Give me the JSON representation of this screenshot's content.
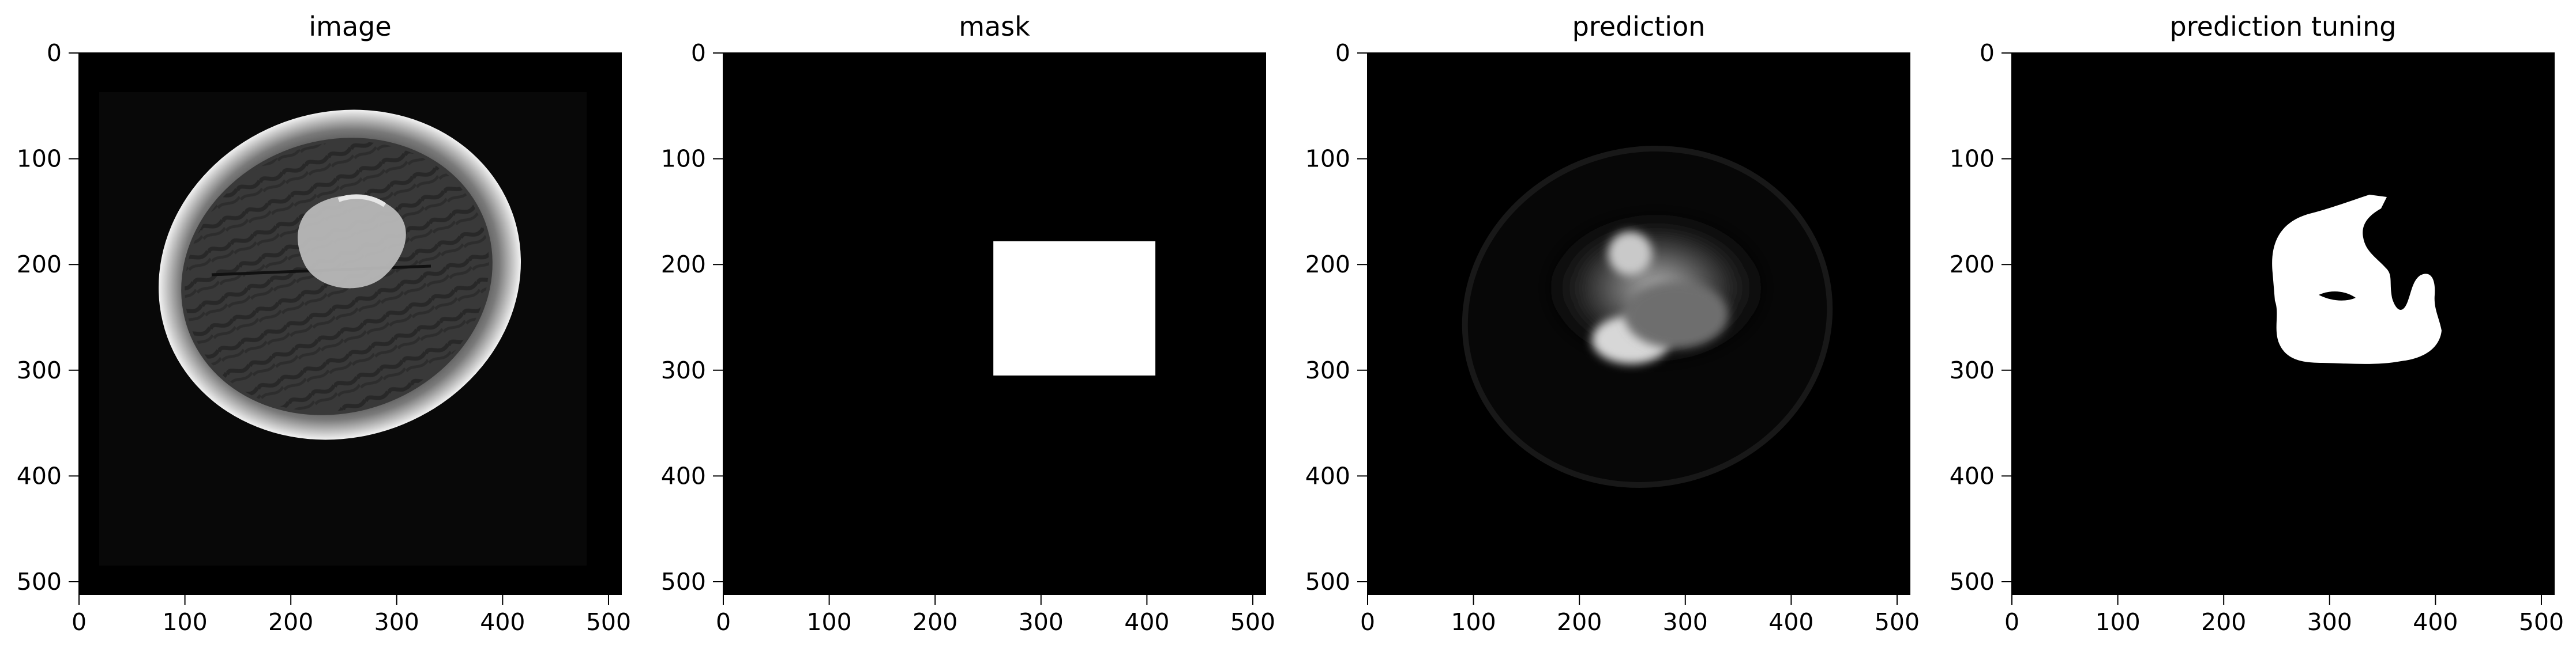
{
  "figure": {
    "panels": [
      {
        "title": "image",
        "content": "brain-mri",
        "x_ticks": [
          "0",
          "100",
          "200",
          "300",
          "400",
          "500"
        ],
        "y_ticks": [
          "0",
          "100",
          "200",
          "300",
          "400",
          "500"
        ]
      },
      {
        "title": "mask",
        "content": "rectangle-mask",
        "x_ticks": [
          "0",
          "100",
          "200",
          "300",
          "400",
          "500"
        ],
        "y_ticks": [
          "0",
          "100",
          "200",
          "300",
          "400",
          "500"
        ]
      },
      {
        "title": "prediction",
        "content": "prediction-heatmap",
        "x_ticks": [
          "0",
          "100",
          "200",
          "300",
          "400",
          "500"
        ],
        "y_ticks": [
          "0",
          "100",
          "200",
          "300",
          "400",
          "500"
        ]
      },
      {
        "title": "prediction tuning",
        "content": "binary-segmentation",
        "x_ticks": [
          "0",
          "100",
          "200",
          "300",
          "400",
          "500"
        ],
        "y_ticks": [
          "0",
          "100",
          "200",
          "300",
          "400",
          "500"
        ]
      }
    ],
    "axis_limits": {
      "x": [
        0,
        512
      ],
      "y": [
        512,
        0
      ]
    },
    "tick_values": [
      0,
      100,
      200,
      300,
      400,
      500
    ],
    "mask_rectangle": {
      "x": [
        255,
        408
      ],
      "y": [
        178,
        305
      ]
    },
    "colors": {
      "background": "#000000",
      "foreground": "#ffffff",
      "axis": "#000000"
    }
  }
}
